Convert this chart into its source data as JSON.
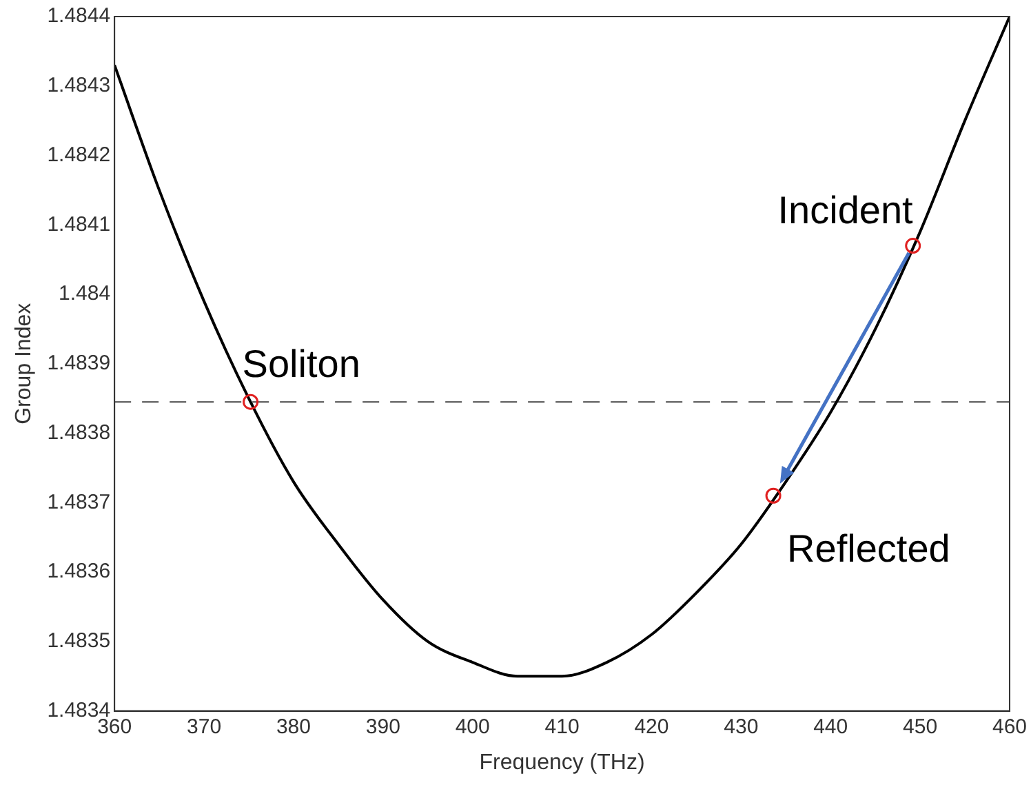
{
  "chart_data": {
    "type": "line",
    "xlabel": "Frequency (THz)",
    "ylabel": "Group Index",
    "xlim": [
      360,
      460
    ],
    "xticks": [
      360,
      370,
      380,
      390,
      400,
      410,
      420,
      430,
      440,
      450,
      460
    ],
    "ylim": [
      1.4834,
      1.4844
    ],
    "yticks": [
      1.4834,
      1.4835,
      1.4836,
      1.4837,
      1.4838,
      1.4839,
      1.484,
      1.4841,
      1.4842,
      1.4843,
      1.4844
    ],
    "grid": false,
    "legend": false,
    "series": [
      {
        "type": "line",
        "color": "#000000",
        "marker": "none",
        "line_style": "solid",
        "x": [
          360,
          365,
          370,
          375,
          380,
          385,
          390,
          395,
          400,
          405,
          406.5,
          410,
          415,
          420,
          425,
          430,
          435,
          440,
          445,
          450,
          455,
          460
        ],
        "values": [
          1.48433,
          1.48415,
          1.48399,
          1.48385,
          1.48373,
          1.48364,
          1.48356,
          1.4835,
          1.48347,
          1.48345,
          1.48345,
          1.48345,
          1.48347,
          1.48351,
          1.48357,
          1.48364,
          1.48373,
          1.48383,
          1.48395,
          1.48409,
          1.48425,
          1.4844
        ]
      },
      {
        "type": "scatter",
        "color": "#e02020",
        "marker": "circle",
        "x": [
          375.2,
          433.6,
          449.2
        ],
        "values": [
          1.483845,
          1.48371,
          1.48407
        ]
      }
    ],
    "ref_lines": [
      {
        "axis": "y",
        "value": 1.483845,
        "color": "#444444",
        "line_style": "dashed"
      }
    ],
    "annotations": [
      {
        "text": "Soliton",
        "x": 375.2,
        "y": 1.483845
      },
      {
        "text": "Reflected",
        "x": 433.6,
        "y": 1.48371
      },
      {
        "text": "Incident",
        "x": 449.2,
        "y": 1.48407
      }
    ]
  }
}
